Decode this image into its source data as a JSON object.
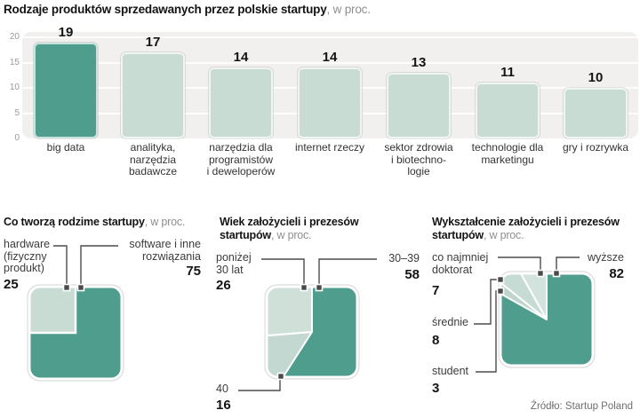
{
  "header": {
    "title_bold": "Rodzaje produktów sprzedawanych przez polskie startupy",
    "title_suffix": ", w proc."
  },
  "chart_data": [
    {
      "id": "products-sold",
      "type": "bar",
      "title": "Rodzaje produktów sprzedawanych przez polskie startupy",
      "title_suffix": ", w proc.",
      "categories": [
        "big data",
        "analityka,\nnarzędzia\nbadawcze",
        "narzędzia dla\nprogramistów\ni deweloperów",
        "internet rzeczy",
        "sektor zdrowia\ni biotechno-\nlogie",
        "technologie dla\nmarketingu",
        "gry i rozrywka"
      ],
      "values": [
        19,
        17,
        14,
        14,
        13,
        11,
        10
      ],
      "ylim": [
        0,
        20
      ],
      "y_ticks": [
        20,
        15,
        10,
        5,
        0
      ],
      "grid": true,
      "highlight_index": 0,
      "colors": {
        "highlight": "#4e9d8d",
        "normal": "#c9dcd4"
      }
    },
    {
      "id": "what-startups-build",
      "type": "square-area",
      "title": "Co tworzą rodzime startupy",
      "title_suffix": ", w proc.",
      "segments": [
        {
          "label": "hardware (fizyczny produkt)",
          "value": 25,
          "color": "#c9dcd4"
        },
        {
          "label": "software i inne rozwiązania",
          "value": 75,
          "color": "#4e9d8d"
        }
      ]
    },
    {
      "id": "founders-age",
      "type": "square-pie",
      "title": "Wiek założycieli i prezesów startupów",
      "title_suffix": ", w proc.",
      "segments": [
        {
          "label": "30–39",
          "value": 58,
          "color": "#4e9d8d"
        },
        {
          "label": "40",
          "value": 16,
          "color": "#c2d8d0"
        },
        {
          "label": "poniżej 30 lat",
          "value": 26,
          "color": "#cfe0d9"
        }
      ]
    },
    {
      "id": "founders-education",
      "type": "square-pie",
      "title": "Wykształcenie założycieli i prezesów startupów",
      "title_suffix": ", w proc.",
      "segments": [
        {
          "label": "wyższe",
          "value": 82,
          "color": "#4e9d8d"
        },
        {
          "label": "student",
          "value": 3,
          "color": "#bdd6cd"
        },
        {
          "label": "średnie",
          "value": 8,
          "color": "#c6dbd3"
        },
        {
          "label": "co najmniej doktorat",
          "value": 7,
          "color": "#d2e2dc"
        }
      ]
    }
  ],
  "panels": {
    "build": {
      "title": "Co tworzą rodzime startupy",
      "suffix": ", w proc.",
      "hardware": {
        "line1": "hardware",
        "line2": "(fizyczny",
        "line3": "produkt)",
        "value": 25
      },
      "software": {
        "line1": "software i inne",
        "line2": "rozwiązania",
        "value": 75
      }
    },
    "age": {
      "title_line1": "Wiek założycieli i prezesów",
      "title_line2": "startupów",
      "suffix": ", w proc.",
      "under30": {
        "line1": "poniżej",
        "line2": "30 lat",
        "value": 26
      },
      "t3039": {
        "label": "30–39",
        "value": 58
      },
      "over40": {
        "label": "40",
        "value": 16
      }
    },
    "education": {
      "title_line1": "Wykształcenie założycieli i prezesów",
      "title_line2": "startupów",
      "suffix": ", w proc.",
      "doctorate": {
        "line1": "co najmniej",
        "line2": "doktorat",
        "value": 7
      },
      "higher": {
        "label": "wyższe",
        "value": 82
      },
      "secondary": {
        "label": "średnie",
        "value": 8
      },
      "student": {
        "label": "student",
        "value": 3
      }
    }
  },
  "source": "Źródło: Startup Poland"
}
